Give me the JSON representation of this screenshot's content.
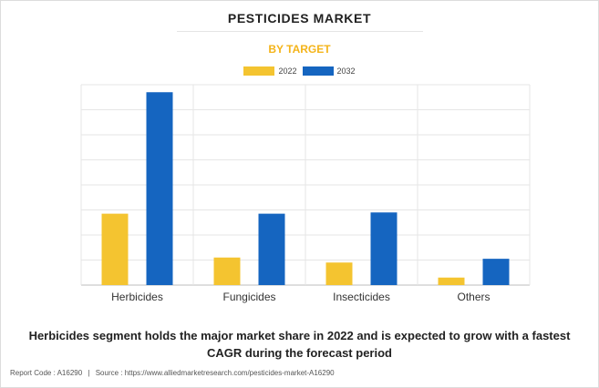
{
  "header": {
    "title": "PESTICIDES MARKET",
    "subtitle": "BY TARGET"
  },
  "colors": {
    "series_2022": "#f4c430",
    "series_2032": "#1565c0",
    "subtitle": "#f4b41a",
    "grid": "#e6e6e6"
  },
  "chart_data": {
    "type": "bar",
    "categories": [
      "Herbicides",
      "Fungicides",
      "Insecticides",
      "Others"
    ],
    "series": [
      {
        "name": "2022",
        "values": [
          2.85,
          1.1,
          0.9,
          0.3
        ]
      },
      {
        "name": "2032",
        "values": [
          7.7,
          2.85,
          2.9,
          1.05
        ]
      }
    ],
    "ylim": [
      0,
      8
    ],
    "ytick_step": 1,
    "y_tick_labels_shown": false,
    "grid": true,
    "legend_position": "top-center"
  },
  "caption": "Herbicides segment holds the major market share in 2022 and is expected to grow with a fastest CAGR during the forecast period",
  "footer": {
    "report_code": "Report Code : A16290",
    "separator": "|",
    "source": "Source : https://www.alliedmarketresearch.com/pesticides-market-A16290"
  }
}
